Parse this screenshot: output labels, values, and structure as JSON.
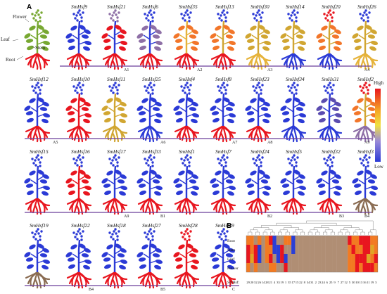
{
  "panel_a": {
    "label": "A",
    "organ_labels": {
      "flower": "Flower",
      "leaf": "Leaf",
      "stem": "Stem",
      "root": "Root"
    },
    "colors": {
      "red": "#e8161f",
      "orange": "#f2762a",
      "amber": "#e6b33a",
      "gold": "#d1a632",
      "tan": "#b08a6a",
      "mauve": "#8e6fa6",
      "purple": "#5b4cb0",
      "blue": "#2b3ad6",
      "green": "#78a832",
      "brown": "#8a6c52"
    },
    "rows": [
      {
        "plants": [
          {
            "label": "",
            "flower": "green",
            "leaf": "green",
            "stem": "green",
            "root": "red"
          },
          {
            "label": "SmHsf9",
            "flower": "blue",
            "leaf": "blue",
            "stem": "blue",
            "root": "red"
          },
          {
            "label": "SmHsf21",
            "flower": "mauve",
            "leaf": "red",
            "stem": "blue",
            "root": "red"
          },
          {
            "label": "SmHsf6",
            "flower": "blue",
            "leaf": "mauve",
            "stem": "blue",
            "root": "red"
          },
          {
            "label": "SmHsf35",
            "flower": "blue",
            "leaf": "orange",
            "stem": "amber",
            "root": "red"
          },
          {
            "label": "SmHsf13",
            "flower": "blue",
            "leaf": "orange",
            "stem": "gold",
            "root": "red"
          },
          {
            "label": "SmHsf30",
            "flower": "blue",
            "leaf": "gold",
            "stem": "gold",
            "root": "amber"
          },
          {
            "label": "SmHsf14",
            "flower": "blue",
            "leaf": "gold",
            "stem": "gold",
            "root": "blue"
          },
          {
            "label": "SmHsf20",
            "flower": "red",
            "leaf": "orange",
            "stem": "gold",
            "root": "blue"
          },
          {
            "label": "SmHsf26",
            "flower": "blue",
            "leaf": "gold",
            "stem": "gold",
            "root": "amber"
          }
        ]
      },
      {
        "plants": [
          {
            "label": "SmHsf12",
            "flower": "blue",
            "leaf": "blue",
            "stem": "blue",
            "root": "red"
          },
          {
            "label": "SmHsf10",
            "flower": "blue",
            "leaf": "red",
            "stem": "red",
            "root": "red"
          },
          {
            "label": "SmHsf11",
            "flower": "blue",
            "leaf": "gold",
            "stem": "gold",
            "root": "gold"
          },
          {
            "label": "SmHsf25",
            "flower": "blue",
            "leaf": "blue",
            "stem": "blue",
            "root": "blue"
          },
          {
            "label": "SmHsf4",
            "flower": "blue",
            "leaf": "blue",
            "stem": "blue",
            "root": "red"
          },
          {
            "label": "SmHsf8",
            "flower": "blue",
            "leaf": "blue",
            "stem": "blue",
            "root": "red"
          },
          {
            "label": "SmHsf23",
            "flower": "blue",
            "leaf": "blue",
            "stem": "blue",
            "root": "red"
          },
          {
            "label": "SmHsf34",
            "flower": "blue",
            "leaf": "blue",
            "stem": "blue",
            "root": "blue"
          },
          {
            "label": "SmHs31",
            "flower": "blue",
            "leaf": "purple",
            "stem": "blue",
            "root": "blue"
          },
          {
            "label": "SmHsf2",
            "flower": "red",
            "leaf": "orange",
            "stem": "gold",
            "root": "mauve"
          }
        ]
      },
      {
        "plants": [
          {
            "label": "SmHsf15",
            "flower": "blue",
            "leaf": "blue",
            "stem": "blue",
            "root": "red"
          },
          {
            "label": "SmHsf16",
            "flower": "blue",
            "leaf": "red",
            "stem": "red",
            "root": "red"
          },
          {
            "label": "SmHsf17",
            "flower": "blue",
            "leaf": "blue",
            "stem": "blue",
            "root": "red"
          },
          {
            "label": "SmHsf33",
            "flower": "blue",
            "leaf": "blue",
            "stem": "blue",
            "root": "red"
          },
          {
            "label": "SmHsf1",
            "flower": "blue",
            "leaf": "blue",
            "stem": "blue",
            "root": "red"
          },
          {
            "label": "SmHsf7",
            "flower": "blue",
            "leaf": "blue",
            "stem": "blue",
            "root": "red"
          },
          {
            "label": "SmHsf24",
            "flower": "blue",
            "leaf": "blue",
            "stem": "blue",
            "root": "red"
          },
          {
            "label": "SmHsf5",
            "flower": "blue",
            "leaf": "blue",
            "stem": "blue",
            "root": "red"
          },
          {
            "label": "SmHsf32",
            "flower": "blue",
            "leaf": "blue",
            "stem": "blue",
            "root": "red"
          },
          {
            "label": "SmHsf3",
            "flower": "blue",
            "leaf": "blue",
            "stem": "blue",
            "root": "brown"
          }
        ]
      },
      {
        "plants": [
          {
            "label": "SmHsf19",
            "flower": "blue",
            "leaf": "blue",
            "stem": "blue",
            "root": "brown"
          },
          {
            "label": "SmHsf22",
            "flower": "blue",
            "leaf": "blue",
            "stem": "blue",
            "root": "red"
          },
          {
            "label": "SmHsf18",
            "flower": "blue",
            "leaf": "blue",
            "stem": "blue",
            "root": "red"
          },
          {
            "label": "SmHsf27",
            "flower": "blue",
            "leaf": "blue",
            "stem": "blue",
            "root": "red"
          },
          {
            "label": "SmHsf28",
            "flower": "red",
            "leaf": "red",
            "stem": "red",
            "root": "red"
          },
          {
            "label": "SmHsf29",
            "flower": "blue",
            "leaf": "blue",
            "stem": "blue",
            "root": "red"
          }
        ]
      }
    ],
    "group_bars": [
      {
        "label": "A1",
        "row": 0,
        "from": 1,
        "to": 3
      },
      {
        "label": "A2",
        "row": 0,
        "from": 3,
        "to": 5
      },
      {
        "label": "A3",
        "row": 0,
        "from": 5,
        "to": 7
      },
      {
        "label": "A4",
        "row": 0,
        "from": 7,
        "to": 10
      },
      {
        "label": "A5",
        "row": 1,
        "from": 0,
        "to": 1
      },
      {
        "label": "A6",
        "row": 1,
        "from": 1,
        "to": 4
      },
      {
        "label": "A7",
        "row": 1,
        "from": 4,
        "to": 6
      },
      {
        "label": "A8",
        "row": 1,
        "from": 6,
        "to": 7
      },
      {
        "label": "A9",
        "row": 1,
        "from": 7,
        "to": 10
      },
      {
        "label": "A9",
        "row": 2,
        "from": 0,
        "to": 3
      },
      {
        "label": "B1",
        "row": 2,
        "from": 3,
        "to": 4
      },
      {
        "label": "B2",
        "row": 2,
        "from": 4,
        "to": 7
      },
      {
        "label": "B3",
        "row": 2,
        "from": 7,
        "to": 9
      },
      {
        "label": "B4",
        "row": 2,
        "from": 9,
        "to": 10
      },
      {
        "label": "B4",
        "row": 3,
        "from": 0,
        "to": 2
      },
      {
        "label": "B5",
        "row": 3,
        "from": 2,
        "to": 4
      },
      {
        "label": "C",
        "row": 3,
        "from": 4,
        "to": 6
      }
    ],
    "bar_color": "#6a3d9a"
  },
  "colorbar": {
    "high": "High",
    "low": "Low",
    "gradient": [
      "#e8161f",
      "#f5a623",
      "#f0e040",
      "#9a8ad8",
      "#2b3ad6"
    ]
  },
  "panel_b": {
    "label": "B",
    "rows": [
      "Root",
      "Stem",
      "Leaf",
      "Flower"
    ],
    "col_axis_label": "SmHsf:",
    "columns": [
      "29",
      "20",
      "32",
      "26",
      "14",
      "28",
      "21",
      "4",
      "33",
      "19",
      "1",
      "35",
      "17",
      "15",
      "22",
      "8",
      "34",
      "31",
      "2",
      "23",
      "24",
      "6",
      "25",
      "9",
      "7",
      "27",
      "12",
      "5",
      "30",
      "10",
      "13",
      "16",
      "11",
      "19",
      "3"
    ],
    "palette": {
      "red": "#e8161f",
      "orange": "#f27a22",
      "gold": "#e0a526",
      "tan": "#b08e74",
      "blue": "#2a3fd6"
    },
    "grid": [
      [
        "orange",
        "orange",
        "tan",
        "orange",
        "tan",
        "orange",
        "red",
        "blue",
        "tan",
        "tan",
        "orange",
        "orange",
        "blue",
        "tan",
        "tan",
        "tan",
        "tan",
        "tan",
        "tan",
        "tan",
        "tan",
        "tan",
        "tan",
        "tan",
        "tan",
        "tan",
        "tan",
        "red",
        "orange",
        "orange",
        "red",
        "red",
        "red",
        "orange",
        "orange"
      ],
      [
        "red",
        "orange",
        "red",
        "blue",
        "tan",
        "orange",
        "orange",
        "blue",
        "blue",
        "red",
        "tan",
        "tan",
        "blue",
        "tan",
        "tan",
        "tan",
        "tan",
        "tan",
        "tan",
        "tan",
        "tan",
        "tan",
        "tan",
        "tan",
        "tan",
        "tan",
        "tan",
        "orange",
        "red",
        "orange",
        "orange",
        "red",
        "red",
        "gold",
        "orange"
      ],
      [
        "red",
        "gold",
        "red",
        "blue",
        "tan",
        "orange",
        "red",
        "tan",
        "blue",
        "red",
        "blue",
        "tan",
        "tan",
        "tan",
        "tan",
        "tan",
        "tan",
        "tan",
        "tan",
        "tan",
        "tan",
        "tan",
        "tan",
        "tan",
        "tan",
        "tan",
        "tan",
        "orange",
        "orange",
        "red",
        "red",
        "red",
        "gold",
        "orange",
        "red"
      ],
      [
        "orange",
        "tan",
        "orange",
        "tan",
        "tan",
        "tan",
        "orange",
        "orange",
        "tan",
        "tan",
        "red",
        "tan",
        "tan",
        "tan",
        "tan",
        "tan",
        "tan",
        "tan",
        "tan",
        "tan",
        "tan",
        "tan",
        "tan",
        "tan",
        "tan",
        "tan",
        "tan",
        "orange",
        "orange",
        "red",
        "orange",
        "red",
        "red",
        "red",
        "orange"
      ]
    ]
  }
}
